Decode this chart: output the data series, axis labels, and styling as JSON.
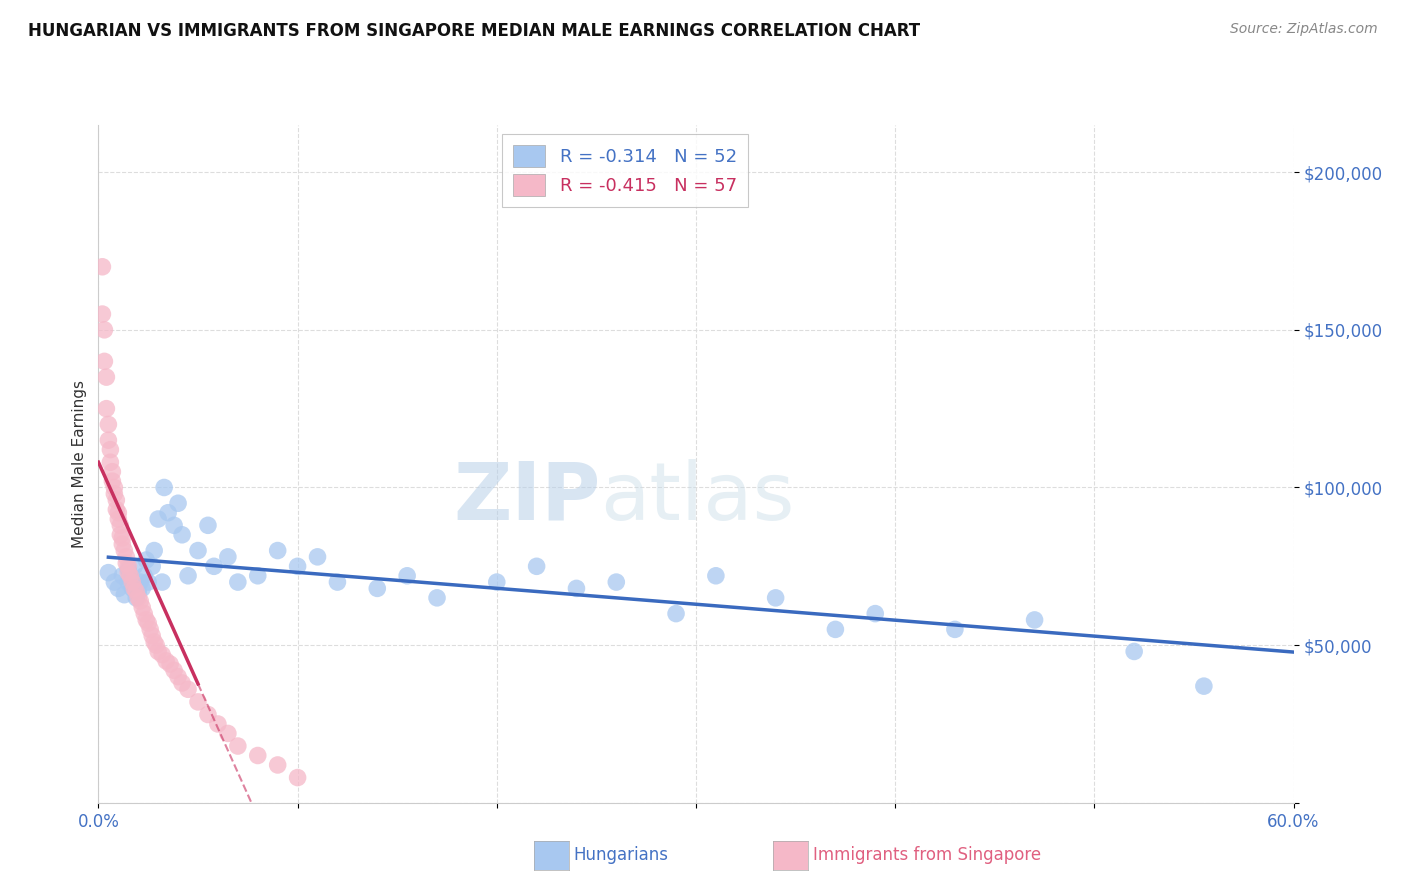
{
  "title": "HUNGARIAN VS IMMIGRANTS FROM SINGAPORE MEDIAN MALE EARNINGS CORRELATION CHART",
  "source": "Source: ZipAtlas.com",
  "ylabel": "Median Male Earnings",
  "xlim": [
    0,
    0.6
  ],
  "ylim": [
    0,
    215000
  ],
  "ytick_vals": [
    0,
    50000,
    100000,
    150000,
    200000
  ],
  "ytick_labels": [
    "",
    "$50,000",
    "$100,000",
    "$150,000",
    "$200,000"
  ],
  "xtick_vals": [
    0.0,
    0.1,
    0.2,
    0.3,
    0.4,
    0.5,
    0.6
  ],
  "xtick_labels": [
    "0.0%",
    "",
    "",
    "",
    "",
    "",
    "60.0%"
  ],
  "legend_r1": "R = -0.314   N = 52",
  "legend_r2": "R = -0.415   N = 57",
  "watermark_zip": "ZIP",
  "watermark_atlas": "atlas",
  "background_color": "#ffffff",
  "grid_color": "#dddddd",
  "blue_scatter_color": "#a8c8f0",
  "pink_scatter_color": "#f5b8c8",
  "blue_line_color": "#3a6abf",
  "pink_line_color": "#c83060",
  "pink_line_dash": [
    6,
    4
  ],
  "legend_blue_color": "#a8c8f0",
  "legend_pink_color": "#f5b8c8",
  "tick_color": "#4472c4",
  "ylabel_color": "#333333",
  "title_color": "#111111",
  "source_color": "#888888",
  "bottom_legend_blue": "Hungarians",
  "bottom_legend_pink": "Immigrants from Singapore",
  "hungarians_x": [
    0.005,
    0.008,
    0.01,
    0.012,
    0.013,
    0.015,
    0.015,
    0.017,
    0.018,
    0.019,
    0.02,
    0.021,
    0.022,
    0.023,
    0.024,
    0.025,
    0.027,
    0.028,
    0.03,
    0.032,
    0.033,
    0.035,
    0.038,
    0.04,
    0.042,
    0.045,
    0.05,
    0.055,
    0.058,
    0.065,
    0.07,
    0.08,
    0.09,
    0.1,
    0.11,
    0.12,
    0.14,
    0.155,
    0.17,
    0.2,
    0.22,
    0.24,
    0.26,
    0.29,
    0.31,
    0.34,
    0.37,
    0.39,
    0.43,
    0.47,
    0.52,
    0.555
  ],
  "hungarians_y": [
    73000,
    70000,
    68000,
    72000,
    66000,
    70000,
    74000,
    68000,
    75000,
    65000,
    67000,
    70000,
    68000,
    72000,
    77000,
    70000,
    75000,
    80000,
    90000,
    70000,
    100000,
    92000,
    88000,
    95000,
    85000,
    72000,
    80000,
    88000,
    75000,
    78000,
    70000,
    72000,
    80000,
    75000,
    78000,
    70000,
    68000,
    72000,
    65000,
    70000,
    75000,
    68000,
    70000,
    60000,
    72000,
    65000,
    55000,
    60000,
    55000,
    58000,
    48000,
    37000
  ],
  "singapore_x": [
    0.002,
    0.002,
    0.003,
    0.003,
    0.004,
    0.004,
    0.005,
    0.005,
    0.006,
    0.006,
    0.007,
    0.007,
    0.008,
    0.008,
    0.009,
    0.009,
    0.01,
    0.01,
    0.011,
    0.011,
    0.012,
    0.012,
    0.013,
    0.014,
    0.014,
    0.015,
    0.015,
    0.016,
    0.017,
    0.018,
    0.019,
    0.02,
    0.021,
    0.022,
    0.023,
    0.024,
    0.025,
    0.026,
    0.027,
    0.028,
    0.029,
    0.03,
    0.032,
    0.034,
    0.036,
    0.038,
    0.04,
    0.042,
    0.045,
    0.05,
    0.055,
    0.06,
    0.065,
    0.07,
    0.08,
    0.09,
    0.1
  ],
  "singapore_y": [
    170000,
    155000,
    150000,
    140000,
    135000,
    125000,
    120000,
    115000,
    112000,
    108000,
    105000,
    102000,
    100000,
    98000,
    96000,
    93000,
    92000,
    90000,
    88000,
    85000,
    84000,
    82000,
    80000,
    78000,
    76000,
    75000,
    73000,
    72000,
    70000,
    68000,
    67000,
    65000,
    64000,
    62000,
    60000,
    58000,
    57000,
    55000,
    53000,
    51000,
    50000,
    48000,
    47000,
    45000,
    44000,
    42000,
    40000,
    38000,
    36000,
    32000,
    28000,
    25000,
    22000,
    18000,
    15000,
    12000,
    8000
  ]
}
